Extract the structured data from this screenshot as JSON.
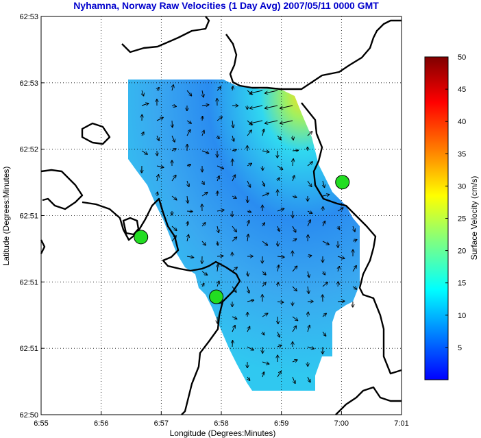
{
  "title": "Nyhamna, Norway Raw Velocities (1 Day Avg) 2007/05/11 0000 GMT",
  "colors": {
    "title": "#0000cc",
    "coastline": "#000000",
    "site_marker": "#22dd22",
    "colormap": [
      "#0000ff",
      "#0080ff",
      "#00ffff",
      "#80ff80",
      "#ffff00",
      "#ff8000",
      "#ff0000",
      "#800000"
    ]
  },
  "chart_data": {
    "type": "heatmap",
    "map_type": "surface current velocity field with coastline",
    "xlabel": "Longitude (Degrees:Minutes)",
    "ylabel": "Latitude (Degrees:Minutes)",
    "x_ticks": [
      "6:55",
      "6:56",
      "6:57",
      "6:58",
      "6:59",
      "7:00",
      "7:01"
    ],
    "y_ticks": [
      "62:53",
      "62:53",
      "62:52",
      "62:51",
      "62:51",
      "62:51",
      "62:50"
    ],
    "xlim": [
      6.9167,
      7.0167
    ],
    "ylim": [
      62.8333,
      62.8833
    ],
    "grid": true,
    "colorbar": {
      "label": "Surface Velocity (cm/s)",
      "range": [
        0,
        50
      ],
      "ticks": [
        5,
        10,
        15,
        20,
        25,
        30,
        35,
        40,
        45,
        50
      ]
    },
    "sites": [
      {
        "lon": 6.9444,
        "lat": 62.8556
      },
      {
        "lon": 6.9653,
        "lat": 62.8481
      },
      {
        "lon": 7.0003,
        "lat": 62.8625
      }
    ],
    "velocity_field": {
      "summary": "Mostly weak flow (2-10 cm/s) over the coverage area, strongest (~15-28 cm/s) along the northeast coast near 62:53N 6:59E with westward vectors",
      "max_speed_cm_s": 28,
      "typical_speed_cm_s": 6
    }
  }
}
